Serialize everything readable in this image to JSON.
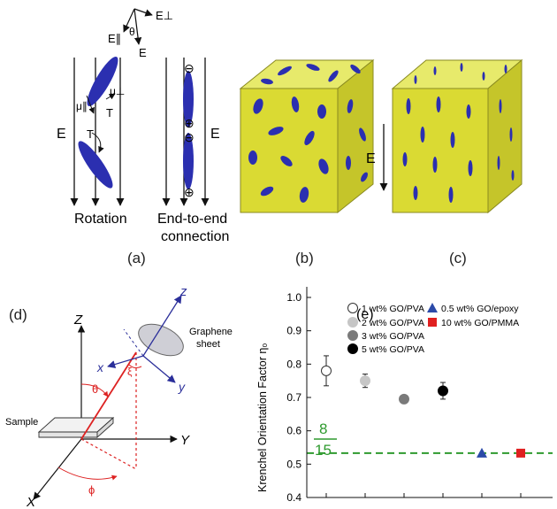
{
  "panel_a": {
    "field_vectors": {
      "e_perp": "E⊥",
      "e_par": "E∥",
      "theta": "θ",
      "e": "E"
    },
    "rotation": {
      "mu_par": "μ∥",
      "mu_perp": "μ⊥",
      "torque_top": "T",
      "torque_bottom": "T",
      "field": "E",
      "caption": "Rotation"
    },
    "end_to_end": {
      "charge_neg_top": "⊖",
      "charge_pos_mid": "⊕",
      "charge_neg_mid": "⊖",
      "charge_pos_bottom": "⊕",
      "field": "E",
      "caption_line1": "End-to-end",
      "caption_line2": "connection"
    },
    "label": "(a)"
  },
  "panel_b": {
    "label": "(b)"
  },
  "panel_c": {
    "label": "(c)",
    "field": "E"
  },
  "panel_d": {
    "label": "(d)",
    "axis_z_sheet": "z",
    "axis_x_sheet": "x",
    "axis_y_sheet": "y",
    "sheet_label_line1": "Graphene",
    "sheet_label_line2": "sheet",
    "xi": "ξ",
    "theta": "θ",
    "phi": "ϕ",
    "axis_Z": "Z",
    "axis_Y": "Y",
    "axis_X": "X",
    "sample": "Sample"
  },
  "panel_e": {
    "label": "(e)",
    "fraction_num": "8",
    "fraction_den": "15",
    "colors": {
      "reference_line": "#2e9a2e",
      "triangle": "#2b4aa8",
      "square": "#e02020"
    }
  },
  "chart_data": {
    "type": "scatter",
    "ylabel": "Krenchel Orientation Factor η₀",
    "ylim": [
      0.4,
      1.0
    ],
    "yticks": [
      "0.4",
      "0.5",
      "0.6",
      "0.7",
      "0.8",
      "0.9",
      "1.0"
    ],
    "reference_line": 0.533,
    "series": [
      {
        "name": "1 wt% GO/PVA",
        "x": 1,
        "y": 0.78,
        "err": 0.045,
        "marker": "circle-open",
        "color": "#ffffff"
      },
      {
        "name": "2 wt% GO/PVA",
        "x": 2,
        "y": 0.75,
        "err": 0.02,
        "marker": "circle",
        "color": "#c6c6c6"
      },
      {
        "name": "3 wt% GO/PVA",
        "x": 3,
        "y": 0.695,
        "err": 0,
        "marker": "circle",
        "color": "#7a7a7a"
      },
      {
        "name": "5 wt% GO/PVA",
        "x": 4,
        "y": 0.72,
        "err": 0.025,
        "marker": "circle",
        "color": "#000000"
      },
      {
        "name": "0.5 wt% GO/epoxy",
        "x": 5,
        "y": 0.533,
        "err": 0,
        "marker": "triangle",
        "color": "#2b4aa8"
      },
      {
        "name": "10 wt% GO/PMMA",
        "x": 6,
        "y": 0.533,
        "err": 0,
        "marker": "square",
        "color": "#e02020"
      }
    ]
  }
}
